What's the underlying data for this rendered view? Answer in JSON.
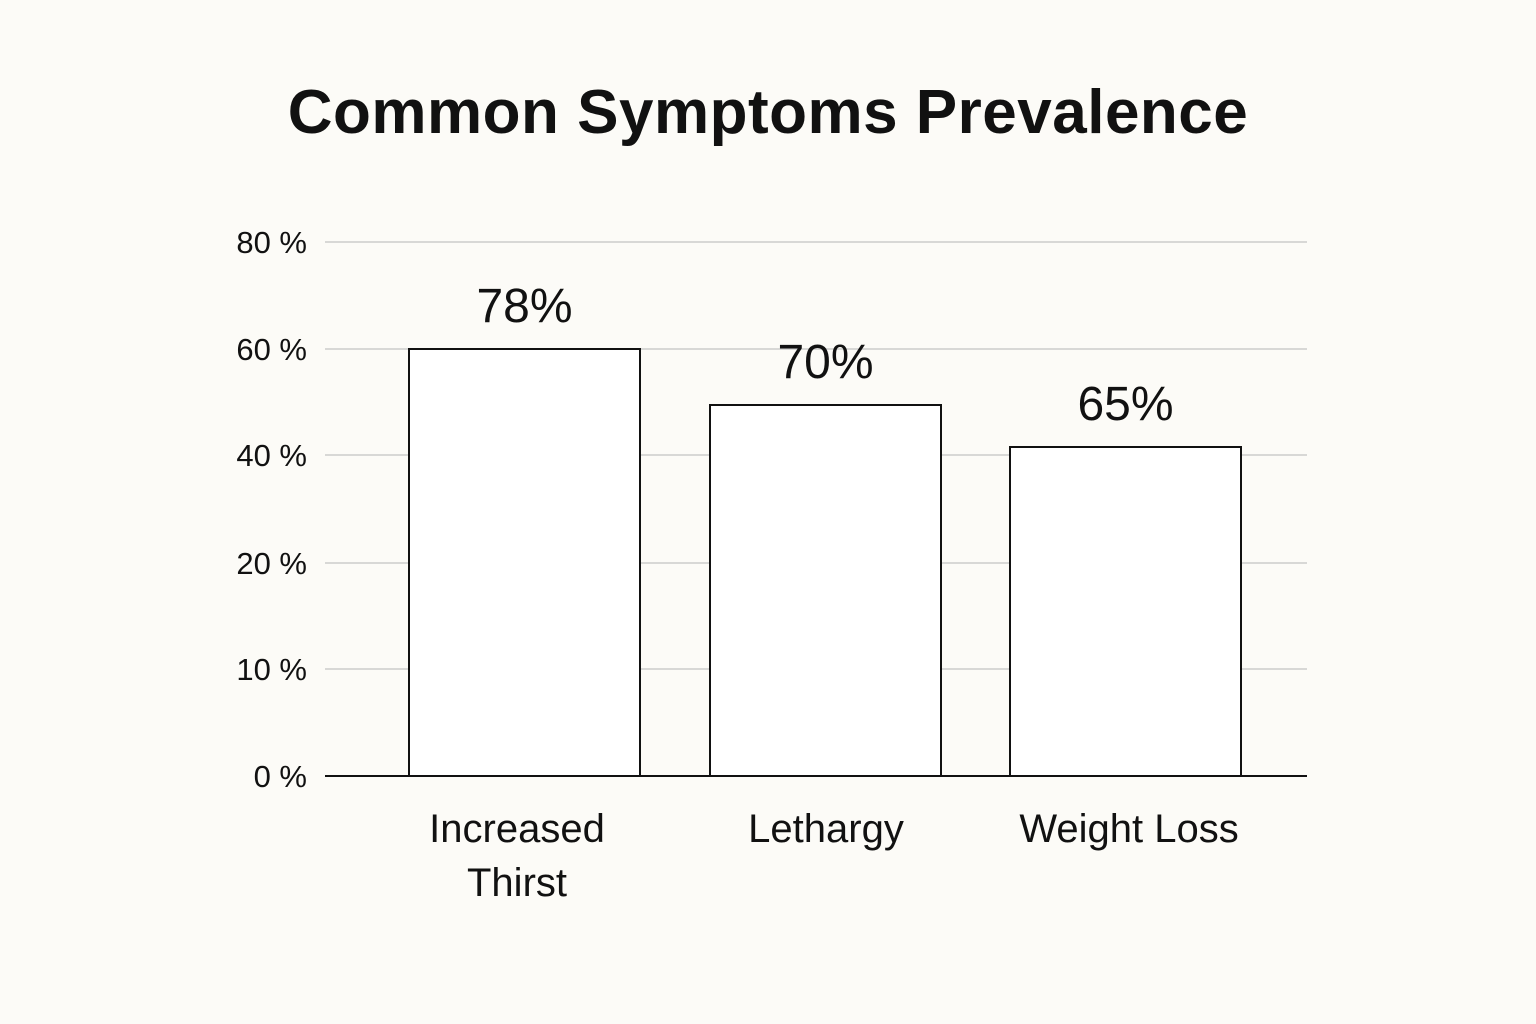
{
  "chart_data": {
    "type": "bar",
    "title": "Common Symptoms Prevalence",
    "xlabel": "",
    "ylabel": "",
    "categories": [
      "Increased Thirst",
      "Lethargy",
      "Weight Loss"
    ],
    "category_lines": [
      [
        "Increased",
        "Thirst"
      ],
      [
        "Lethargy"
      ],
      [
        "Weight Loss"
      ]
    ],
    "values": [
      78,
      70,
      65
    ],
    "value_labels": [
      "78%",
      "70%",
      "65%"
    ],
    "y_ticks": [
      0,
      10,
      20,
      40,
      60,
      80
    ],
    "y_tick_labels": [
      "0 %",
      "10 %",
      "20 %",
      "40 %",
      "60 %",
      "80 %"
    ],
    "grid": true,
    "legend": "none",
    "colors": {
      "bar_fill": "#ffffff",
      "bar_stroke": "#111111",
      "grid": "#cccccc",
      "axis": "#111111",
      "text": "#111111"
    }
  }
}
